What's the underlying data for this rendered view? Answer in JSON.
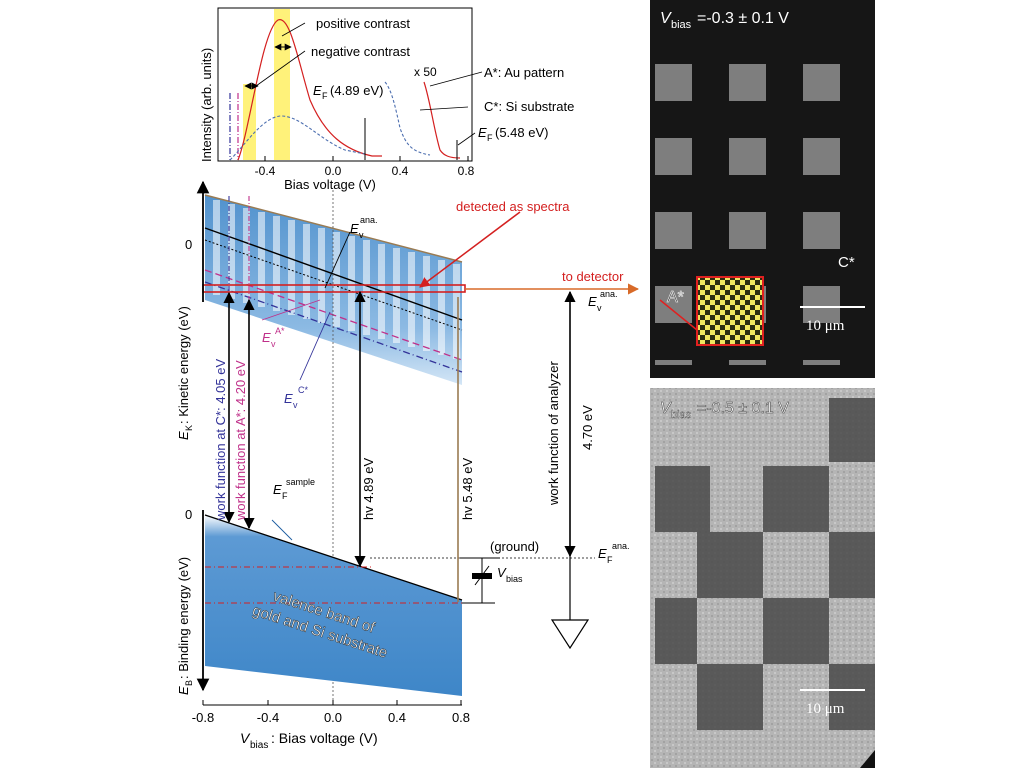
{
  "inset": {
    "ylabel": "Intensity (arb. units)",
    "xlabel": "Bias voltage (V)",
    "xticks": [
      "-0.4",
      "0.0",
      "0.4",
      "0.8"
    ],
    "ann_positive": "positive contrast",
    "ann_negative": "negative contrast",
    "ef1_main": "E",
    "ef1_sub": "F",
    "ef1_val": "(4.89 eV)",
    "x50": "x 50",
    "au_pattern": "A*: Au pattern",
    "si_substrate": "C*: Si substrate",
    "ef2_main": "E",
    "ef2_sub": "F",
    "ef2_val": "(5.48 eV)"
  },
  "main": {
    "xlabel_v": "V",
    "xlabel_sub": "bias",
    "xlabel_rest": ": Bias voltage (V)",
    "xticks": [
      "-0.8",
      "-0.4",
      "0.0",
      "0.4",
      "0.8"
    ],
    "ek_label_e": "E",
    "ek_label_sub": "K",
    "ek_label_rest": ": Kinetic energy (eV)",
    "eb_label_e": "E",
    "eb_label_sub": "B",
    "eb_label_rest": ": Binding energy (eV)",
    "zero_top": "0",
    "zero_top2": "0",
    "zero_bottom": "0",
    "detected_as_spectra": "detected as spectra",
    "to_detector": "to detector",
    "ev_ana_e": "E",
    "ev_ana_sub": "v",
    "ev_ana_sup": "ana.",
    "ev_ana2_e": "E",
    "ev_ana2_sub": "v",
    "ev_ana2_sup": "ana.",
    "ev_a_e": "E",
    "ev_a_sub": "v",
    "ev_a_sup": "A*",
    "ev_c_e": "E",
    "ev_c_sub": "v",
    "ev_c_sup": "C*",
    "wf_c": "work function at C*: 4.05 eV",
    "wf_a": "work function at A*: 4.20 eV",
    "hv489": "hv 4.89 eV",
    "hv548": "hv 5.48 eV",
    "wf_analyzer": "work function of analyzer",
    "val_470": "4.70 eV",
    "ef_sample_e": "E",
    "ef_sample_sub": "F",
    "ef_sample_sup": "sample",
    "ef_ana_e": "E",
    "ef_ana_sub": "F",
    "ef_ana_sup": "ana.",
    "ground": "(ground)",
    "vbias_v": "V",
    "vbias_sub": "bias",
    "valence_line1": "valence band of",
    "valence_line2": "gold and Si substrate"
  },
  "image_top": {
    "title_v": "V",
    "title_sub": "bias",
    "title_rest": "=-0.3 ± 0.1 V",
    "label_c": "C*",
    "label_a": "A*",
    "scale": "10 μm"
  },
  "image_bottom": {
    "title_v": "V",
    "title_sub": "bias",
    "title_rest": "=-0.5 ± 0.1 V",
    "scale": "10 μm"
  },
  "colors": {
    "red": "#d42020",
    "orange": "#d86a28",
    "blue": "#3e86c8",
    "navy": "#333399",
    "magenta": "#c0308a",
    "yellow": "#fff27a",
    "brown": "#9a7b52"
  }
}
